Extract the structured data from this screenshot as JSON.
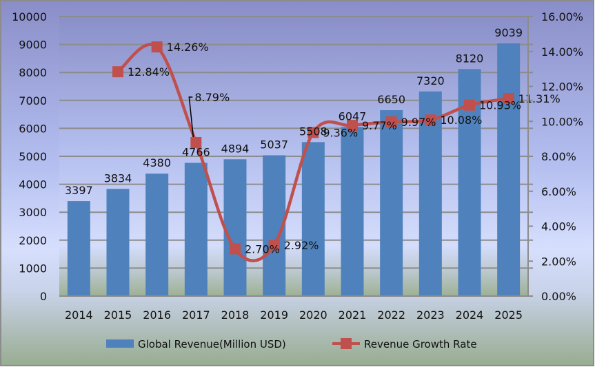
{
  "chart_data": {
    "type": "bar+line",
    "categories": [
      "2014",
      "2015",
      "2016",
      "2017",
      "2018",
      "2019",
      "2020",
      "2021",
      "2022",
      "2023",
      "2024",
      "2025"
    ],
    "series": [
      {
        "name": "Global Revenue(Million USD)",
        "type": "bar",
        "axis": "left",
        "color": "#4f81bd",
        "values": [
          3397,
          3834,
          4380,
          4766,
          4894,
          5037,
          5508,
          6047,
          6650,
          7320,
          8120,
          9039
        ],
        "labels": [
          "3397",
          "3834",
          "4380",
          "4766",
          "4894",
          "5037",
          "5508",
          "6047",
          "6650",
          "7320",
          "8120",
          "9039"
        ]
      },
      {
        "name": "Revenue Growth Rate",
        "type": "line",
        "axis": "right",
        "color": "#c0504d",
        "smooth": true,
        "marker": "square",
        "values": [
          null,
          12.84,
          14.26,
          8.79,
          2.7,
          2.92,
          9.36,
          9.77,
          9.97,
          10.08,
          10.93,
          11.31
        ],
        "labels": [
          null,
          "12.84%",
          "14.26%",
          "8.79%",
          "2.70%",
          "2.92%",
          "9.36%",
          "9.77%",
          "9.97%",
          "10.08%",
          "10.93%",
          "11.31%"
        ]
      }
    ],
    "y_left": {
      "range": [
        0,
        10000
      ],
      "ticks": [
        "0",
        "1000",
        "2000",
        "3000",
        "4000",
        "5000",
        "6000",
        "7000",
        "8000",
        "9000",
        "10000"
      ]
    },
    "y_right": {
      "range": [
        0,
        16
      ],
      "ticks": [
        "0.00%",
        "2.00%",
        "4.00%",
        "6.00%",
        "8.00%",
        "10.00%",
        "12.00%",
        "14.00%",
        "16.00%"
      ]
    },
    "grid": true,
    "legend": "bottom"
  }
}
